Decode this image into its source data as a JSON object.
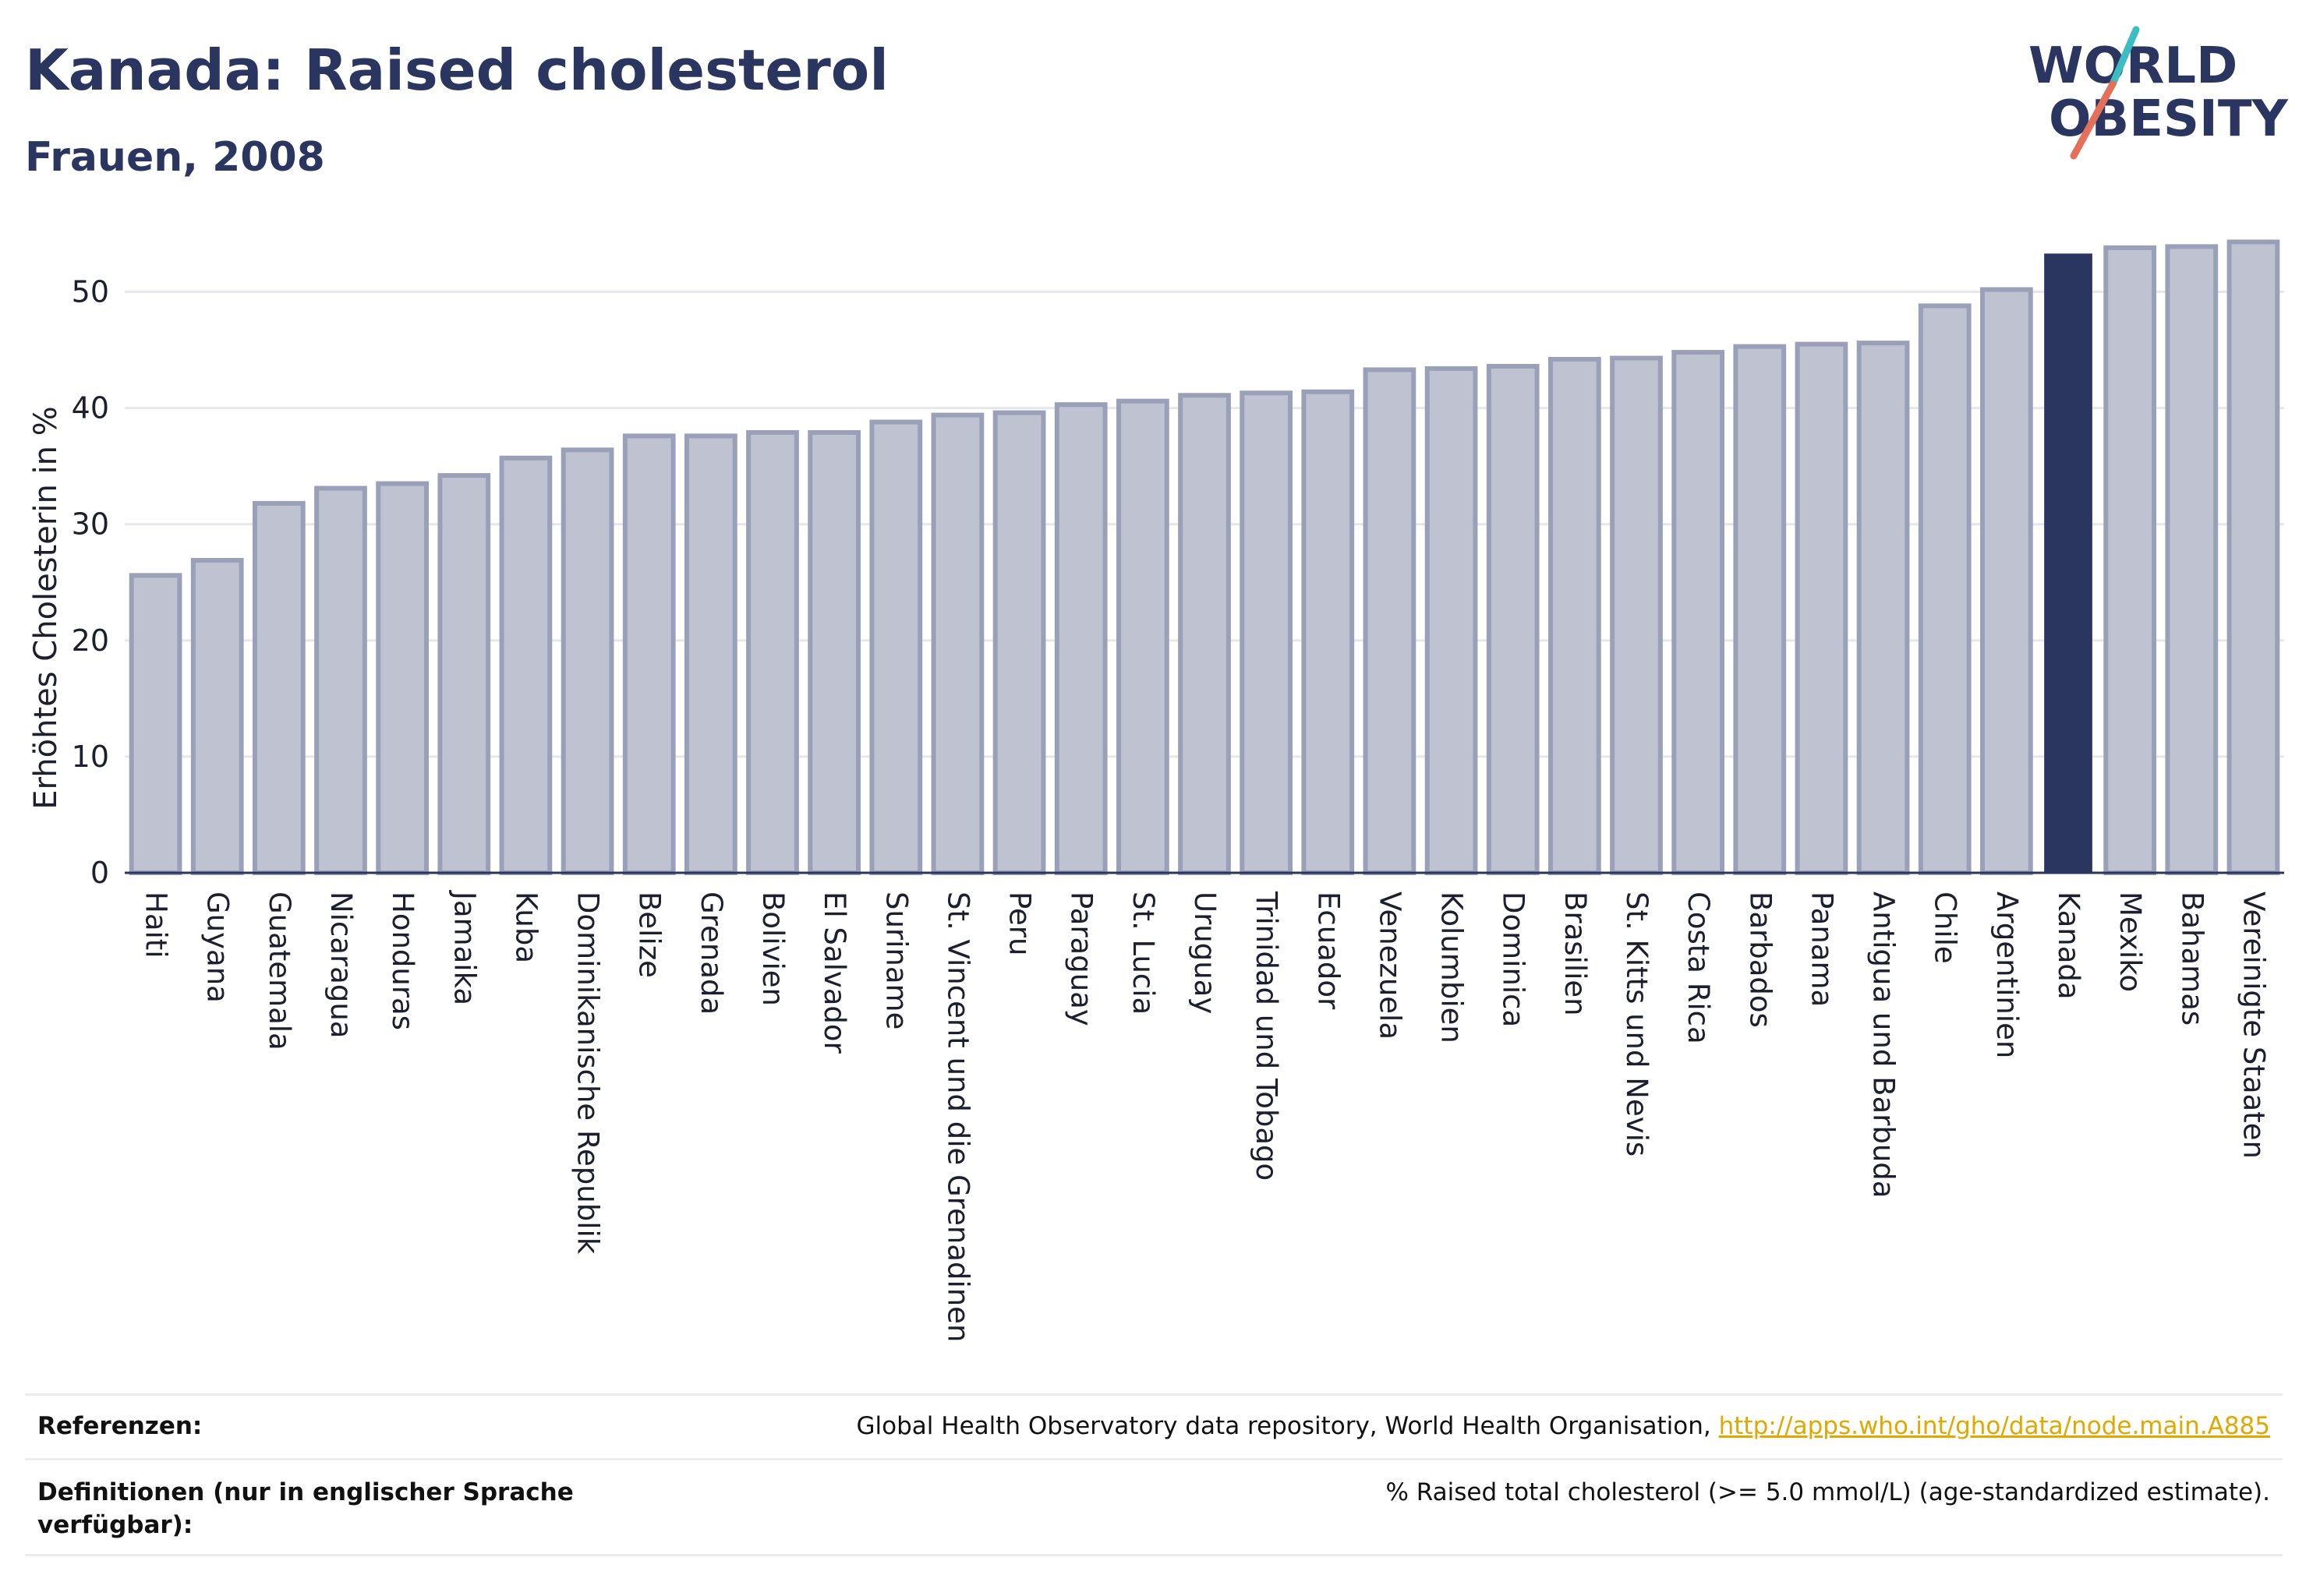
{
  "header": {
    "title": "Kanada: Raised cholesterol",
    "subtitle": "Frauen, 2008"
  },
  "logo": {
    "line1": "WORLD",
    "line2": "OBESITY",
    "colors": {
      "text": "#2b3660",
      "slash_teal": "#3bbdc2",
      "slash_red": "#e5705a"
    }
  },
  "colors": {
    "bar_fill": "#bfc2d0",
    "bar_stroke": "#9aa0b8",
    "highlight": "#2b3660",
    "gridline": "#e6e7ec",
    "axis_text": "#1b1f2e"
  },
  "chart_data": {
    "type": "bar",
    "ylabel": "Erhöhtes Cholesterin in %",
    "ylim": [
      0,
      55
    ],
    "yticks": [
      0,
      10,
      20,
      30,
      40,
      50
    ],
    "grid": true,
    "highlight_category": "Kanada",
    "categories": [
      "Haiti",
      "Guyana",
      "Guatemala",
      "Nicaragua",
      "Honduras",
      "Jamaika",
      "Kuba",
      "Dominikanische Republik",
      "Belize",
      "Grenada",
      "Bolivien",
      "El Salvador",
      "Suriname",
      "St. Vincent und die Grenadinen",
      "Peru",
      "Paraguay",
      "St. Lucia",
      "Uruguay",
      "Trinidad und Tobago",
      "Ecuador",
      "Venezuela",
      "Kolumbien",
      "Dominica",
      "Brasilien",
      "St. Kitts und Nevis",
      "Costa Rica",
      "Barbados",
      "Panama",
      "Antigua und Barbuda",
      "Chile",
      "Argentinien",
      "Kanada",
      "Mexiko",
      "Bahamas",
      "Vereinigte Staaten"
    ],
    "values": [
      25.6,
      26.9,
      31.8,
      33.1,
      33.5,
      34.2,
      35.7,
      36.4,
      37.6,
      37.6,
      37.9,
      37.9,
      38.8,
      39.4,
      39.6,
      40.3,
      40.6,
      41.1,
      41.3,
      41.4,
      43.3,
      43.4,
      43.6,
      44.2,
      44.3,
      44.8,
      45.3,
      45.5,
      45.6,
      48.8,
      50.2,
      53.3,
      53.8,
      53.9,
      54.3
    ]
  },
  "references": {
    "rows": [
      {
        "label": "Referenzen:",
        "text": "Global Health Observatory data repository, World Health Organisation, ",
        "link": "http://apps.who.int/gho/data/node.main.A885"
      },
      {
        "label": "Definitionen (nur in englischer Sprache verfügbar):",
        "text": "% Raised total cholesterol (>= 5.0 mmol/L) (age-standardized estimate)."
      }
    ]
  }
}
